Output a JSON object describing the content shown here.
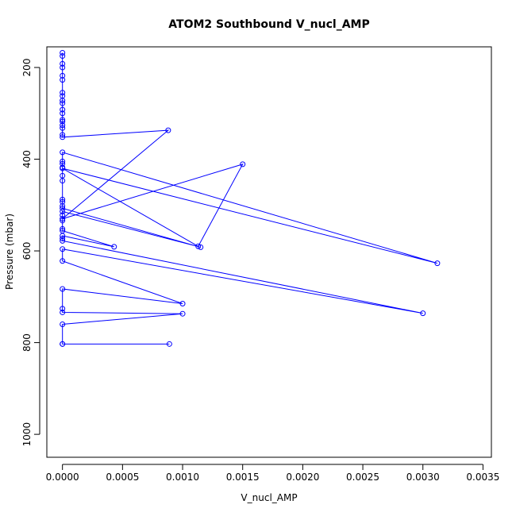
{
  "chart_data": {
    "type": "line",
    "title": "ATOM2 Southbound V_nucl_AMP",
    "xlabel": "V_nucl_AMP",
    "ylabel": "Pressure (mbar)",
    "xlim": [
      -0.00013,
      0.00357
    ],
    "ylim": [
      1050,
      155
    ],
    "y_reversed": true,
    "grid": false,
    "legend": "none",
    "x_ticks": [
      0.0,
      0.0005,
      0.001,
      0.0015,
      0.002,
      0.0025,
      0.003,
      0.0035
    ],
    "x_tick_labels": [
      "0.0000",
      "0.0005",
      "0.0010",
      "0.0015",
      "0.0020",
      "0.0025",
      "0.0030",
      "0.0035"
    ],
    "y_ticks": [
      200,
      400,
      600,
      800,
      1000
    ],
    "y_tick_labels": [
      "200",
      "400",
      "600",
      "800",
      "1000"
    ],
    "colors": {
      "series": "#0000ff"
    },
    "series": [
      {
        "marker": "open-circle",
        "points": [
          [
            0,
            168
          ],
          [
            0,
            175
          ],
          [
            0,
            192
          ],
          [
            0,
            200
          ],
          [
            0,
            218
          ],
          [
            0,
            227
          ],
          [
            0,
            255
          ],
          [
            0,
            262
          ],
          [
            0,
            272
          ],
          [
            0,
            278
          ],
          [
            0,
            292
          ],
          [
            0,
            300
          ],
          [
            0,
            314
          ],
          [
            0,
            318
          ],
          [
            0,
            326
          ],
          [
            0,
            332
          ],
          [
            0,
            347
          ],
          [
            0,
            352
          ],
          [
            0.00088,
            337
          ],
          [
            0,
            530
          ],
          [
            0.0015,
            411
          ],
          [
            0.00113,
            590
          ],
          [
            0,
            420
          ],
          [
            0.00312,
            627
          ],
          [
            0,
            385
          ],
          [
            0,
            405
          ],
          [
            0,
            410
          ],
          [
            0,
            418
          ],
          [
            0,
            436
          ],
          [
            0,
            447
          ],
          [
            0,
            488
          ],
          [
            0,
            493
          ],
          [
            0,
            502
          ],
          [
            0,
            507
          ],
          [
            0.00115,
            592
          ],
          [
            0,
            514
          ],
          [
            0,
            522
          ],
          [
            0,
            534
          ],
          [
            0,
            552
          ],
          [
            0,
            556
          ],
          [
            0.00043,
            591
          ],
          [
            0,
            567
          ],
          [
            0,
            573
          ],
          [
            0,
            578
          ],
          [
            0.003,
            736
          ],
          [
            0,
            596
          ],
          [
            0,
            622
          ],
          [
            0.001,
            715
          ],
          [
            0,
            683
          ],
          [
            0,
            726
          ],
          [
            0,
            734
          ],
          [
            0.001,
            737
          ],
          [
            0,
            760
          ],
          [
            0,
            803
          ],
          [
            0.00089,
            803
          ],
          [
            0,
            803
          ]
        ]
      }
    ]
  }
}
